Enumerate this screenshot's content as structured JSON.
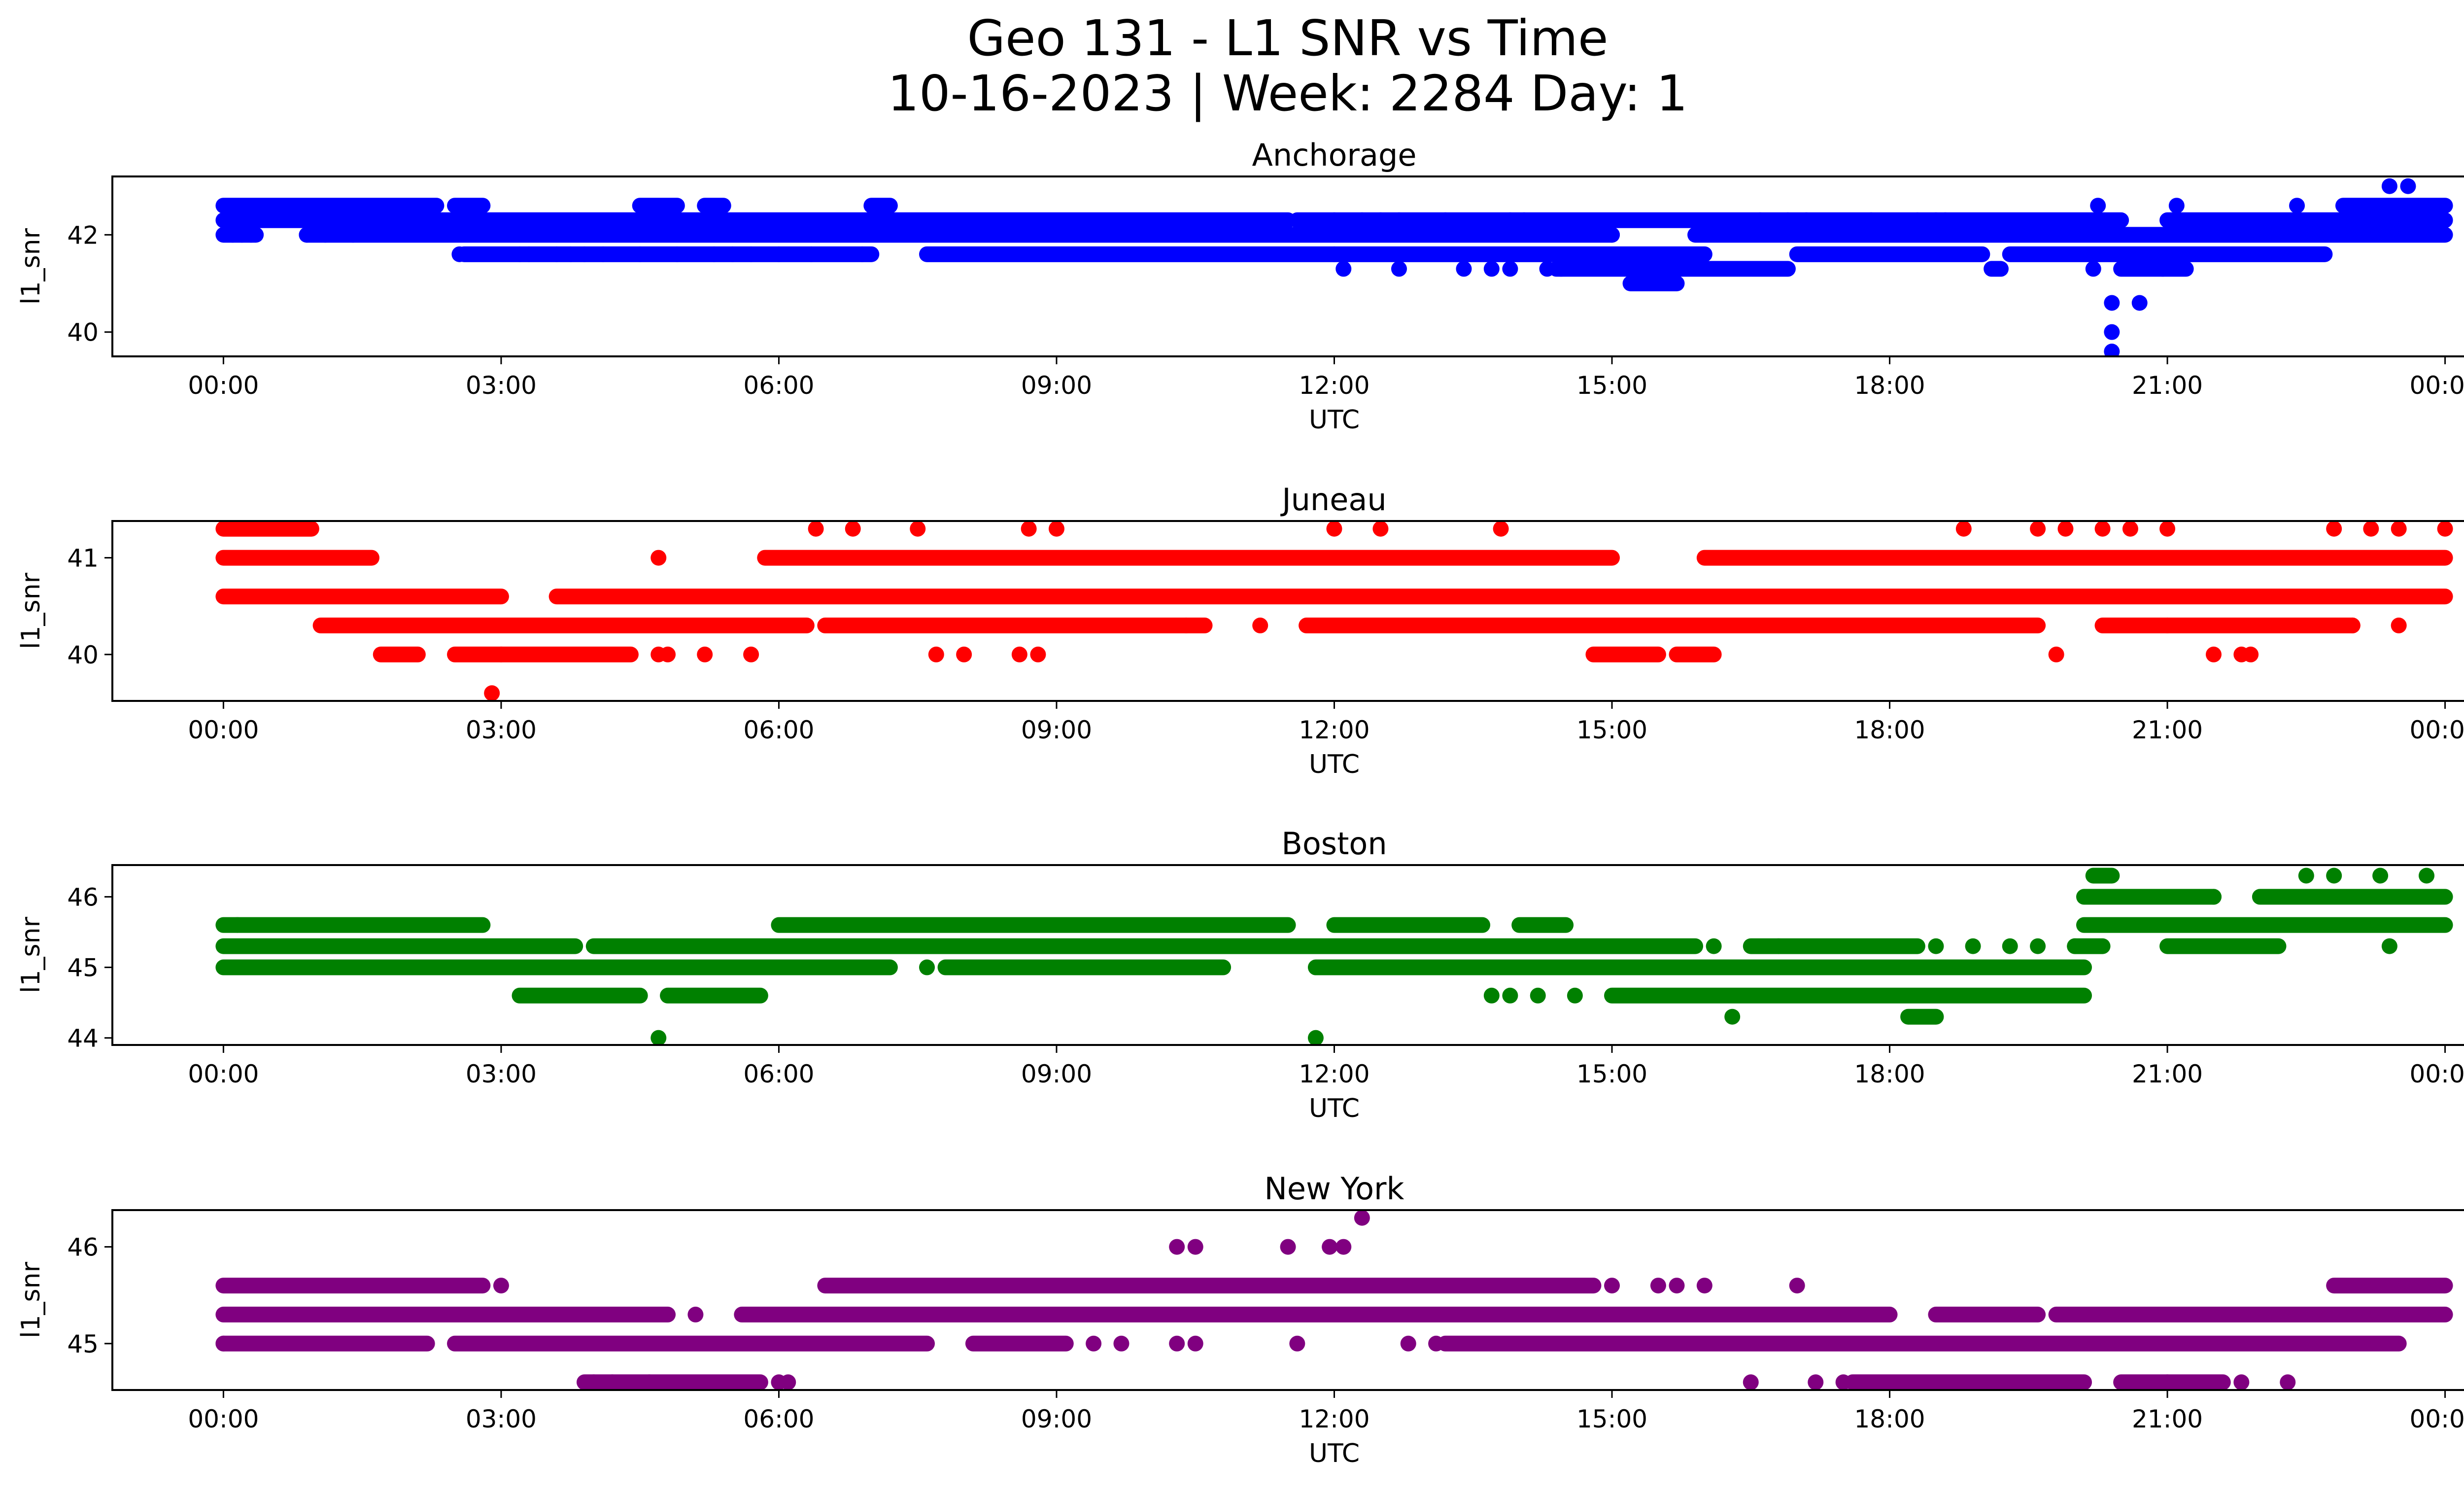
{
  "figure": {
    "title_line1": "Geo 131 - L1 SNR vs Time",
    "title_line2": "10-16-2023 | Week: 2284 Day: 1"
  },
  "chart_data": [
    {
      "type": "scatter",
      "title": "Anchorage",
      "color": "#0000ff",
      "xlabel": "UTC",
      "ylabel": "l1_snr",
      "x_ticks": [
        "00:00",
        "03:00",
        "06:00",
        "09:00",
        "12:00",
        "15:00",
        "18:00",
        "21:00",
        "00:00"
      ],
      "xlim_hours": [
        -1.2,
        25.2
      ],
      "y_ticks": [
        40,
        42
      ],
      "ylim": [
        39.5,
        43.2
      ],
      "grid": false,
      "bands": [
        {
          "y": 42.6,
          "segments": [
            [
              0.0,
              2.3
            ],
            [
              2.5,
              2.8
            ],
            [
              4.5,
              4.9
            ],
            [
              5.2,
              5.4
            ],
            [
              7.0,
              7.2
            ],
            [
              22.9,
              24.0
            ]
          ]
        },
        {
          "y": 42.3,
          "segments": [
            [
              0.0,
              11.5
            ],
            [
              11.6,
              20.5
            ],
            [
              21.0,
              24.0
            ]
          ]
        },
        {
          "y": 42.0,
          "segments": [
            [
              0.0,
              0.35
            ],
            [
              0.9,
              15.0
            ],
            [
              15.9,
              24.0
            ]
          ]
        },
        {
          "y": 41.6,
          "segments": [
            [
              2.6,
              7.0
            ],
            [
              7.6,
              12.0
            ],
            [
              12.0,
              16.0
            ],
            [
              17.0,
              19.0
            ],
            [
              19.3,
              22.7
            ]
          ]
        },
        {
          "y": 41.3,
          "segments": [
            [
              14.4,
              16.9
            ],
            [
              19.1,
              19.2
            ],
            [
              20.5,
              21.2
            ]
          ]
        },
        {
          "y": 41.0,
          "segments": [
            [
              15.2,
              15.7
            ]
          ]
        }
      ],
      "points": [
        [
          0.1,
          42.0
        ],
        [
          0.2,
          42.0
        ],
        [
          0.3,
          42.0
        ],
        [
          0.9,
          42.0
        ],
        [
          1.1,
          42.0
        ],
        [
          1.4,
          42.0
        ],
        [
          2.55,
          41.6
        ],
        [
          3.2,
          41.6
        ],
        [
          3.3,
          41.6
        ],
        [
          3.6,
          41.6
        ],
        [
          3.75,
          41.6
        ],
        [
          3.9,
          41.6
        ],
        [
          4.1,
          41.6
        ],
        [
          4.5,
          41.6
        ],
        [
          4.9,
          41.6
        ],
        [
          5.3,
          41.6
        ],
        [
          5.5,
          41.6
        ],
        [
          5.7,
          41.6
        ],
        [
          6.0,
          41.6
        ],
        [
          6.35,
          41.6
        ],
        [
          6.9,
          41.6
        ],
        [
          12.1,
          41.3
        ],
        [
          12.7,
          41.3
        ],
        [
          13.4,
          41.3
        ],
        [
          13.7,
          41.3
        ],
        [
          13.9,
          41.3
        ],
        [
          14.3,
          41.3
        ],
        [
          14.45,
          41.3
        ],
        [
          12.0,
          42.3
        ],
        [
          12.5,
          42.3
        ],
        [
          12.7,
          42.3
        ],
        [
          13.2,
          42.3
        ],
        [
          13.9,
          42.3
        ],
        [
          14.05,
          42.3
        ],
        [
          16.6,
          42.3
        ],
        [
          16.9,
          42.3
        ],
        [
          17.1,
          42.3
        ],
        [
          17.8,
          42.3
        ],
        [
          18.3,
          42.3
        ],
        [
          18.5,
          42.3
        ],
        [
          20.4,
          40.6
        ],
        [
          20.4,
          40.0
        ],
        [
          20.4,
          39.6
        ],
        [
          20.7,
          40.6
        ],
        [
          20.2,
          41.3
        ],
        [
          20.95,
          41.3
        ],
        [
          20.25,
          42.6
        ],
        [
          21.1,
          42.6
        ],
        [
          22.4,
          42.6
        ],
        [
          23.4,
          43.0
        ],
        [
          23.6,
          43.0
        ],
        [
          12.3,
          42.3
        ],
        [
          15.0,
          42.0
        ],
        [
          18.6,
          42.3
        ]
      ]
    },
    {
      "type": "scatter",
      "title": "Juneau",
      "color": "#ff0000",
      "xlabel": "UTC",
      "ylabel": "l1_snr",
      "x_ticks": [
        "00:00",
        "03:00",
        "06:00",
        "09:00",
        "12:00",
        "15:00",
        "18:00",
        "21:00",
        "00:00"
      ],
      "xlim_hours": [
        -1.2,
        25.2
      ],
      "y_ticks": [
        40,
        41
      ],
      "ylim": [
        39.52,
        41.38
      ],
      "grid": false,
      "bands": [
        {
          "y": 41.3,
          "segments": [
            [
              0.0,
              0.95
            ]
          ]
        },
        {
          "y": 41.0,
          "segments": [
            [
              0.0,
              1.6
            ],
            [
              5.85,
              15.0
            ],
            [
              16.0,
              24.0
            ]
          ]
        },
        {
          "y": 40.6,
          "segments": [
            [
              0.0,
              3.0
            ],
            [
              3.6,
              24.0
            ]
          ]
        },
        {
          "y": 40.3,
          "segments": [
            [
              1.05,
              6.3
            ],
            [
              6.5,
              10.6
            ],
            [
              11.7,
              19.6
            ],
            [
              20.3,
              21.0
            ],
            [
              21.0,
              23.0
            ]
          ]
        },
        {
          "y": 40.0,
          "segments": [
            [
              1.7,
              2.1
            ],
            [
              2.5,
              4.4
            ],
            [
              14.8,
              15.5
            ],
            [
              15.7,
              16.1
            ]
          ]
        }
      ],
      "points": [
        [
          2.9,
          39.6
        ],
        [
          3.0,
          40.0
        ],
        [
          4.7,
          40.0
        ],
        [
          4.8,
          40.0
        ],
        [
          5.2,
          40.0
        ],
        [
          5.7,
          40.0
        ],
        [
          7.7,
          40.0
        ],
        [
          8.0,
          40.0
        ],
        [
          8.6,
          40.0
        ],
        [
          8.8,
          40.0
        ],
        [
          19.8,
          40.0
        ],
        [
          21.5,
          40.0
        ],
        [
          21.8,
          40.0
        ],
        [
          21.9,
          40.0
        ],
        [
          4.7,
          41.0
        ],
        [
          6.4,
          41.3
        ],
        [
          6.8,
          41.3
        ],
        [
          7.5,
          41.3
        ],
        [
          8.7,
          41.3
        ],
        [
          9.0,
          41.3
        ],
        [
          12.0,
          41.3
        ],
        [
          12.5,
          41.3
        ],
        [
          13.8,
          41.3
        ],
        [
          18.8,
          41.3
        ],
        [
          19.6,
          41.3
        ],
        [
          19.9,
          41.3
        ],
        [
          20.3,
          41.3
        ],
        [
          20.6,
          41.3
        ],
        [
          21.0,
          41.3
        ],
        [
          22.8,
          41.3
        ],
        [
          23.2,
          41.3
        ],
        [
          23.5,
          41.3
        ],
        [
          24.0,
          41.3
        ],
        [
          11.2,
          40.3
        ],
        [
          10.4,
          40.3
        ],
        [
          23.0,
          40.3
        ],
        [
          23.5,
          40.3
        ]
      ]
    },
    {
      "type": "scatter",
      "title": "Boston",
      "color": "#008000",
      "xlabel": "UTC",
      "ylabel": "l1_snr",
      "x_ticks": [
        "00:00",
        "03:00",
        "06:00",
        "09:00",
        "12:00",
        "15:00",
        "18:00",
        "21:00",
        "00:00"
      ],
      "xlim_hours": [
        -1.2,
        25.2
      ],
      "y_ticks": [
        44,
        45,
        46
      ],
      "ylim": [
        43.9,
        46.45
      ],
      "grid": false,
      "bands": [
        {
          "y": 46.3,
          "segments": [
            [
              20.2,
              20.4
            ]
          ]
        },
        {
          "y": 46.0,
          "segments": [
            [
              20.1,
              21.5
            ],
            [
              22.0,
              24.0
            ]
          ]
        },
        {
          "y": 45.6,
          "segments": [
            [
              0.0,
              2.8
            ],
            [
              6.0,
              11.5
            ],
            [
              12.0,
              13.6
            ],
            [
              14.0,
              14.5
            ],
            [
              20.1,
              24.0
            ]
          ]
        },
        {
          "y": 45.3,
          "segments": [
            [
              0.0,
              3.8
            ],
            [
              4.0,
              15.9
            ],
            [
              16.5,
              18.3
            ],
            [
              20.0,
              20.3
            ],
            [
              21.0,
              22.2
            ]
          ]
        },
        {
          "y": 45.0,
          "segments": [
            [
              0.0,
              7.2
            ],
            [
              7.8,
              10.8
            ],
            [
              11.8,
              20.1
            ]
          ]
        },
        {
          "y": 44.6,
          "segments": [
            [
              3.2,
              4.5
            ],
            [
              4.8,
              5.8
            ],
            [
              15.0,
              20.1
            ]
          ]
        },
        {
          "y": 44.3,
          "segments": [
            [
              18.2,
              18.5
            ]
          ]
        }
      ],
      "points": [
        [
          0.15,
          45.6
        ],
        [
          4.7,
          44.0
        ],
        [
          11.8,
          44.0
        ],
        [
          16.3,
          44.3
        ],
        [
          13.7,
          44.6
        ],
        [
          13.9,
          44.6
        ],
        [
          14.2,
          44.6
        ],
        [
          14.6,
          44.6
        ],
        [
          7.6,
          45.0
        ],
        [
          8.4,
          45.0
        ],
        [
          8.8,
          45.0
        ],
        [
          9.3,
          45.0
        ],
        [
          16.1,
          45.3
        ],
        [
          16.8,
          45.3
        ],
        [
          18.5,
          45.3
        ],
        [
          18.9,
          45.3
        ],
        [
          19.3,
          45.3
        ],
        [
          19.6,
          45.3
        ],
        [
          20.0,
          45.3
        ],
        [
          23.4,
          45.3
        ],
        [
          21.5,
          46.0
        ],
        [
          22.5,
          46.3
        ],
        [
          22.8,
          46.3
        ],
        [
          23.3,
          46.3
        ],
        [
          23.8,
          46.3
        ]
      ]
    },
    {
      "type": "scatter",
      "title": "New York",
      "color": "#800080",
      "xlabel": "UTC",
      "ylabel": "l1_snr",
      "x_ticks": [
        "00:00",
        "03:00",
        "06:00",
        "09:00",
        "12:00",
        "15:00",
        "18:00",
        "21:00",
        "00:00"
      ],
      "xlim_hours": [
        -1.2,
        25.2
      ],
      "y_ticks": [
        45,
        46
      ],
      "ylim": [
        44.52,
        46.38
      ],
      "grid": false,
      "bands": [
        {
          "y": 45.6,
          "segments": [
            [
              0.0,
              2.8
            ],
            [
              6.5,
              14.8
            ],
            [
              22.8,
              24.0
            ]
          ]
        },
        {
          "y": 45.3,
          "segments": [
            [
              0.0,
              4.8
            ],
            [
              5.6,
              18.0
            ],
            [
              18.5,
              19.6
            ],
            [
              19.8,
              24.0
            ]
          ]
        },
        {
          "y": 45.0,
          "segments": [
            [
              0.0,
              2.2
            ],
            [
              2.5,
              7.6
            ],
            [
              8.1,
              9.1
            ],
            [
              13.2,
              23.5
            ]
          ]
        },
        {
          "y": 44.6,
          "segments": [
            [
              3.9,
              5.8
            ],
            [
              17.6,
              20.1
            ],
            [
              20.5,
              21.6
            ]
          ]
        }
      ],
      "points": [
        [
          0.0,
          45.0
        ],
        [
          3.0,
          45.6
        ],
        [
          5.1,
          45.3
        ],
        [
          6.0,
          44.6
        ],
        [
          6.1,
          44.6
        ],
        [
          4.0,
          44.6
        ],
        [
          4.2,
          44.6
        ],
        [
          4.6,
          44.6
        ],
        [
          10.3,
          46.0
        ],
        [
          10.5,
          46.0
        ],
        [
          11.5,
          46.0
        ],
        [
          11.95,
          46.0
        ],
        [
          12.1,
          46.0
        ],
        [
          12.3,
          46.3
        ],
        [
          11.6,
          45.0
        ],
        [
          9.4,
          45.0
        ],
        [
          9.7,
          45.0
        ],
        [
          10.3,
          45.0
        ],
        [
          10.5,
          45.0
        ],
        [
          12.8,
          45.0
        ],
        [
          13.1,
          45.0
        ],
        [
          15.0,
          45.6
        ],
        [
          15.5,
          45.6
        ],
        [
          15.7,
          45.6
        ],
        [
          16.0,
          45.6
        ],
        [
          17.0,
          45.6
        ],
        [
          16.5,
          44.6
        ],
        [
          17.2,
          44.6
        ],
        [
          17.5,
          44.6
        ],
        [
          21.8,
          44.6
        ],
        [
          22.3,
          44.6
        ],
        [
          21.0,
          44.6
        ]
      ]
    }
  ]
}
